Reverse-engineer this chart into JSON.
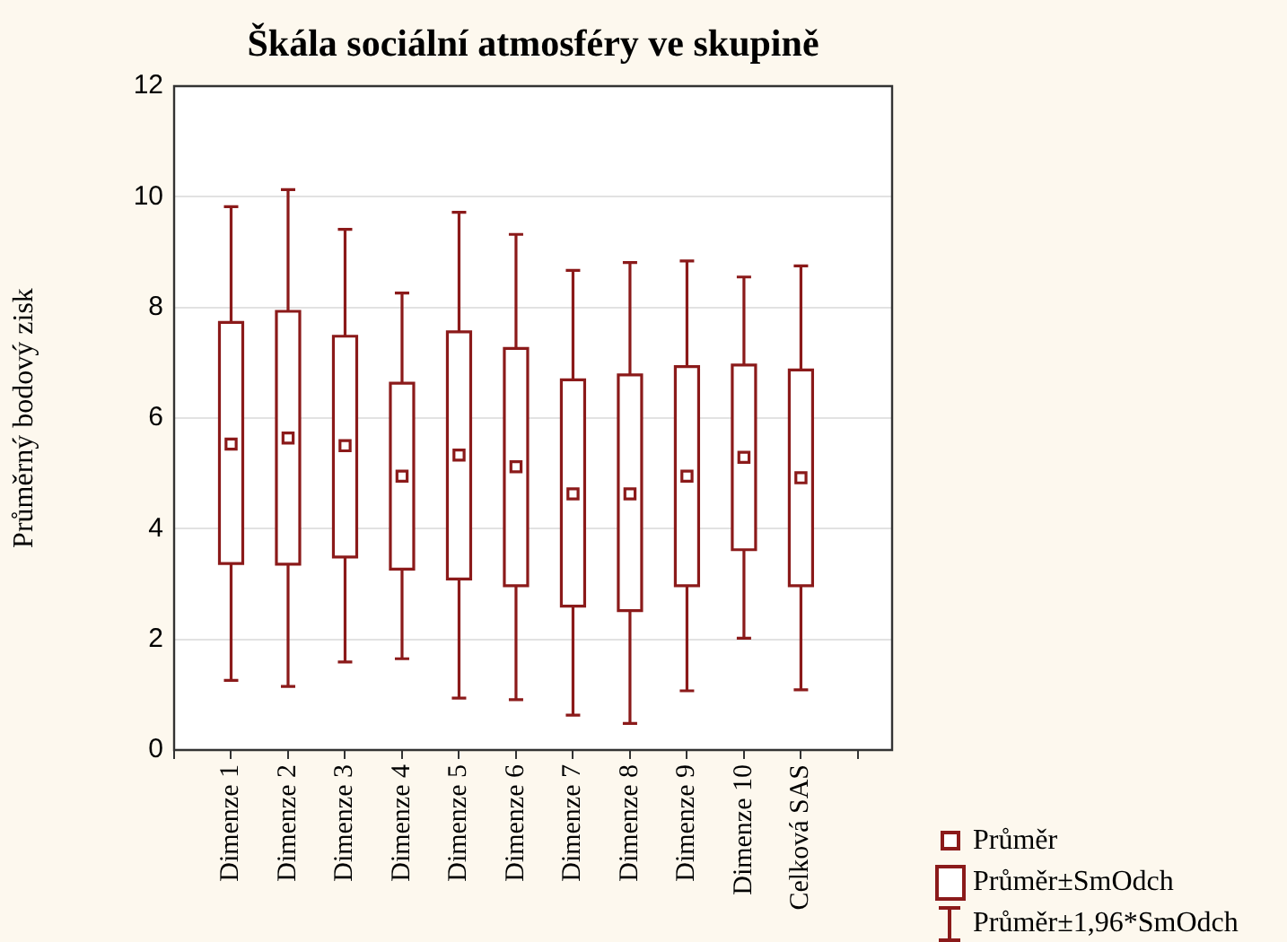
{
  "chart_data": {
    "type": "box",
    "title": "Škála sociální atmosféry ve skupině",
    "ylabel": "Průměrný bodový zisk",
    "categories": [
      "Dimenze 1",
      "Dimenze 2",
      "Dimenze 3",
      "Dimenze 4",
      "Dimenze 5",
      "Dimenze 6",
      "Dimenze 7",
      "Dimenze 8",
      "Dimenze 9",
      "Dimenze 10",
      "Celková SAS"
    ],
    "color": "#8b1a1a",
    "boxes": [
      {
        "low": 1.26,
        "q1": 3.37,
        "q3": 7.73,
        "high": 9.82,
        "mean": 5.53
      },
      {
        "low": 1.15,
        "q1": 3.36,
        "q3": 7.93,
        "high": 10.13,
        "mean": 5.64
      },
      {
        "low": 1.59,
        "q1": 3.49,
        "q3": 7.48,
        "high": 9.41,
        "mean": 5.5
      },
      {
        "low": 1.65,
        "q1": 3.27,
        "q3": 6.63,
        "high": 8.26,
        "mean": 4.95
      },
      {
        "low": 0.94,
        "q1": 3.09,
        "q3": 7.56,
        "high": 9.72,
        "mean": 5.33
      },
      {
        "low": 0.91,
        "q1": 2.97,
        "q3": 7.26,
        "high": 9.32,
        "mean": 5.12
      },
      {
        "low": 0.63,
        "q1": 2.6,
        "q3": 6.69,
        "high": 8.67,
        "mean": 4.63
      },
      {
        "low": 0.48,
        "q1": 2.52,
        "q3": 6.78,
        "high": 8.81,
        "mean": 4.63
      },
      {
        "low": 1.07,
        "q1": 2.97,
        "q3": 6.93,
        "high": 8.84,
        "mean": 4.95
      },
      {
        "low": 2.02,
        "q1": 3.62,
        "q3": 6.96,
        "high": 8.55,
        "mean": 5.29
      },
      {
        "low": 1.09,
        "q1": 2.97,
        "q3": 6.87,
        "high": 8.75,
        "mean": 4.92
      }
    ],
    "ylim": [
      0,
      12
    ],
    "yticks": [
      0,
      2,
      4,
      6,
      8,
      10,
      12
    ],
    "grid": "y",
    "marker": "square",
    "annotations": [
      "Průměr",
      "Průměr±SmOdch",
      "Průměr±1,96*SmOdch"
    ]
  }
}
